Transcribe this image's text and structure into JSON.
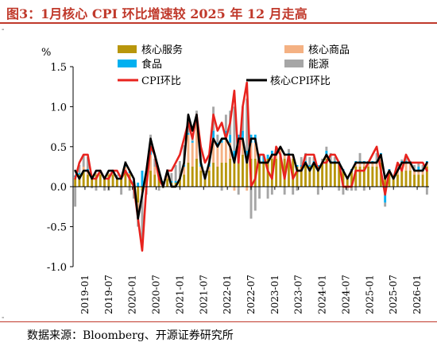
{
  "title": "图3：1月核心 CPI 环比增速较 2025 年 12 月走高",
  "source": "数据来源：Bloomberg、开源证券研究所",
  "colors": {
    "core_services": "#B8960C",
    "core_goods": "#F4B183",
    "food": "#00B0F0",
    "energy": "#A6A6A6",
    "cpi_mom": "#E8231E",
    "core_cpi_mom": "#000000",
    "title": "#C0392B"
  },
  "chart_data": {
    "type": "bar+line",
    "unit_label": "%",
    "ylim": [
      -1.0,
      1.5
    ],
    "yticks": [
      {
        "v": 1.5,
        "label": "1.5"
      },
      {
        "v": 1.0,
        "label": "1.0"
      },
      {
        "v": 0.5,
        "label": "0.5"
      },
      {
        "v": 0.0,
        "label": "0.0"
      },
      {
        "v": -0.5,
        "label": "-0.5"
      },
      {
        "v": -1.0,
        "label": "-1.0"
      }
    ],
    "xticks": [
      "2019-01",
      "2019-07",
      "2020-01",
      "2020-07",
      "2021-01",
      "2021-07",
      "2022-01",
      "2022-07",
      "2023-01",
      "2023-07",
      "2024-01",
      "2024-07",
      "2025-01",
      "2025-07",
      "2026-01"
    ],
    "legend": [
      {
        "key": "core_services",
        "label": "核心服务",
        "kind": "bar"
      },
      {
        "key": "core_goods",
        "label": "核心商品",
        "kind": "bar"
      },
      {
        "key": "food",
        "label": "食品",
        "kind": "bar"
      },
      {
        "key": "energy",
        "label": "能源",
        "kind": "bar"
      },
      {
        "key": "cpi_mom",
        "label": "CPI环比",
        "kind": "line"
      },
      {
        "key": "core_cpi_mom",
        "label": "核心CPI环比",
        "kind": "line"
      }
    ],
    "cpi_mom": [
      0.1,
      0.3,
      0.4,
      0.4,
      0.1,
      0.1,
      0.2,
      0.1,
      0.1,
      0.2,
      0.2,
      0.1,
      0.2,
      0.1,
      0.0,
      -0.4,
      -0.8,
      0.0,
      0.5,
      0.4,
      0.1,
      0.0,
      0.2,
      0.2,
      0.3,
      0.4,
      0.6,
      0.8,
      0.6,
      0.9,
      0.5,
      0.3,
      0.4,
      0.9,
      0.7,
      0.8,
      0.6,
      0.8,
      1.2,
      0.3,
      1.0,
      1.3,
      0.0,
      0.1,
      0.4,
      0.4,
      0.2,
      0.1,
      0.5,
      0.4,
      0.1,
      0.4,
      0.1,
      0.2,
      0.2,
      0.4,
      0.4,
      0.4,
      0.2,
      0.3,
      0.3,
      0.4,
      0.4,
      0.3,
      0.0,
      0.0,
      0.0,
      0.2,
      0.2,
      0.2,
      0.3,
      0.4,
      0.5,
      0.2,
      -0.1,
      0.2,
      0.1,
      0.3,
      0.2,
      0.4,
      0.3,
      0.3,
      0.3,
      0.3,
      0.2
    ],
    "core_cpi_mom": [
      0.2,
      0.1,
      0.2,
      0.2,
      0.1,
      0.2,
      0.2,
      0.1,
      0.2,
      0.2,
      0.1,
      0.1,
      0.3,
      0.2,
      0.1,
      -0.4,
      -0.1,
      0.2,
      0.6,
      0.4,
      0.2,
      0.0,
      0.2,
      0.0,
      0.0,
      0.1,
      0.3,
      0.9,
      0.7,
      0.9,
      0.3,
      0.1,
      0.3,
      0.6,
      0.5,
      0.6,
      0.6,
      0.5,
      0.3,
      0.6,
      0.6,
      0.3,
      0.6,
      0.6,
      0.3,
      0.3,
      0.3,
      0.4,
      0.4,
      0.5,
      0.4,
      0.4,
      0.4,
      0.2,
      0.2,
      0.3,
      0.2,
      0.3,
      0.2,
      0.3,
      0.4,
      0.3,
      0.3,
      0.3,
      0.2,
      0.1,
      0.2,
      0.3,
      0.3,
      0.3,
      0.3,
      0.3,
      0.3,
      0.4,
      0.1,
      0.2,
      0.1,
      0.2,
      0.3,
      0.3,
      0.3,
      0.2,
      0.2,
      0.2,
      0.3
    ],
    "core_services": [
      0.1,
      0.15,
      0.2,
      0.15,
      0.1,
      0.15,
      0.15,
      0.1,
      0.15,
      0.15,
      0.1,
      0.1,
      0.2,
      0.15,
      0.05,
      -0.2,
      -0.05,
      0.1,
      0.2,
      0.15,
      0.1,
      0.05,
      0.1,
      0.05,
      0.05,
      0.1,
      0.15,
      0.3,
      0.25,
      0.35,
      0.2,
      0.1,
      0.2,
      0.3,
      0.25,
      0.3,
      0.3,
      0.35,
      0.35,
      0.35,
      0.4,
      0.35,
      0.35,
      0.35,
      0.3,
      0.3,
      0.35,
      0.35,
      0.35,
      0.4,
      0.35,
      0.35,
      0.35,
      0.25,
      0.25,
      0.3,
      0.25,
      0.3,
      0.25,
      0.3,
      0.35,
      0.3,
      0.3,
      0.3,
      0.2,
      0.1,
      0.2,
      0.25,
      0.25,
      0.25,
      0.25,
      0.25,
      0.25,
      0.3,
      0.1,
      0.15,
      0.1,
      0.15,
      0.2,
      0.2,
      0.2,
      0.15,
      0.15,
      0.15,
      0.25
    ],
    "core_goods": [
      0.02,
      0.0,
      0.05,
      0.05,
      0.0,
      0.02,
      0.02,
      0.0,
      0.02,
      0.02,
      0.0,
      0.0,
      0.05,
      0.02,
      0.0,
      -0.1,
      -0.05,
      0.05,
      0.2,
      0.1,
      0.05,
      0.0,
      0.05,
      0.0,
      0.0,
      0.02,
      0.1,
      0.35,
      0.3,
      0.45,
      0.05,
      0.0,
      0.05,
      0.3,
      0.25,
      0.25,
      0.3,
      0.2,
      -0.05,
      0.2,
      0.2,
      -0.05,
      0.2,
      0.2,
      0.0,
      0.0,
      0.0,
      0.05,
      0.05,
      0.1,
      0.05,
      0.05,
      0.05,
      0.0,
      0.0,
      0.0,
      0.0,
      0.0,
      0.0,
      0.0,
      0.05,
      0.0,
      0.0,
      0.0,
      0.0,
      0.0,
      0.0,
      0.05,
      0.05,
      0.05,
      0.05,
      0.05,
      0.05,
      0.1,
      0.0,
      0.05,
      0.0,
      0.05,
      0.1,
      0.1,
      0.1,
      0.05,
      0.05,
      0.05,
      0.05
    ],
    "food": [
      0.02,
      0.02,
      0.0,
      0.02,
      0.02,
      0.0,
      0.02,
      0.0,
      0.0,
      0.02,
      0.0,
      0.02,
      0.05,
      0.02,
      0.02,
      0.05,
      0.2,
      0.05,
      0.05,
      0.0,
      0.0,
      0.02,
      0.02,
      0.02,
      0.02,
      0.0,
      0.02,
      0.02,
      0.02,
      0.05,
      0.05,
      0.05,
      0.05,
      0.1,
      0.05,
      0.05,
      0.1,
      0.1,
      0.1,
      0.1,
      0.1,
      0.1,
      0.1,
      0.1,
      0.1,
      0.1,
      0.05,
      0.05,
      0.05,
      0.0,
      0.0,
      0.02,
      0.0,
      0.02,
      0.02,
      0.02,
      0.02,
      0.02,
      0.02,
      0.0,
      0.05,
      0.02,
      0.02,
      0.02,
      0.02,
      0.02,
      0.02,
      0.02,
      0.02,
      0.02,
      0.02,
      0.02,
      0.02,
      0.02,
      -0.2,
      0.02,
      0.02,
      0.02,
      0.02,
      0.02,
      0.02,
      0.02,
      0.05,
      0.02,
      0.02
    ],
    "energy": [
      -0.25,
      0.1,
      0.15,
      0.15,
      -0.02,
      -0.05,
      0.02,
      -0.05,
      -0.05,
      0.02,
      0.05,
      -0.1,
      0.02,
      -0.05,
      -0.15,
      -0.2,
      -0.6,
      -0.1,
      0.2,
      0.1,
      -0.05,
      -0.02,
      0.05,
      0.1,
      0.2,
      0.2,
      0.25,
      0.15,
      0.05,
      0.1,
      0.15,
      0.05,
      0.1,
      0.3,
      0.1,
      -0.05,
      0.2,
      0.3,
      0.55,
      -0.1,
      0.3,
      0.65,
      -0.4,
      -0.3,
      -0.15,
      0.0,
      -0.15,
      -0.1,
      0.05,
      0.0,
      -0.1,
      0.05,
      -0.1,
      -0.05,
      0.1,
      0.1,
      0.1,
      0.05,
      -0.1,
      0.05,
      0.05,
      0.1,
      0.05,
      -0.05,
      -0.1,
      -0.05,
      -0.05,
      -0.05,
      0.1,
      -0.05,
      0.0,
      0.0,
      0.1,
      0.0,
      -0.05,
      0.0,
      0.0,
      0.05,
      0.02,
      0.05,
      0.0,
      0.05,
      0.05,
      0.05,
      -0.1
    ]
  }
}
